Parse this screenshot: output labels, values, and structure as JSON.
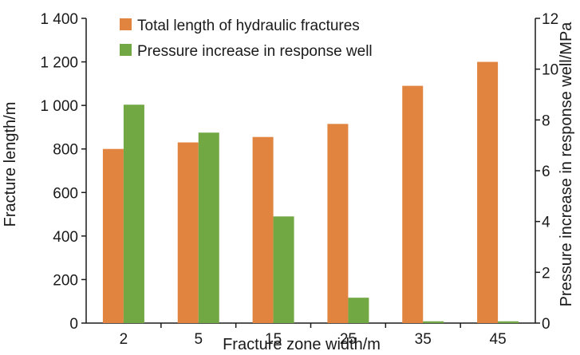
{
  "chart_data": {
    "type": "bar",
    "categories": [
      "2",
      "5",
      "15",
      "25",
      "35",
      "45"
    ],
    "xlabel": "Fracture zone width/m",
    "ylabel": "Fracture length/m",
    "y2label": "Pressure increase in response well/MPa",
    "ylim": [
      0,
      1400
    ],
    "y2lim": [
      0,
      12
    ],
    "yticks": [
      "0",
      "200",
      "400",
      "600",
      "800",
      "1 000",
      "1 200",
      "1 400"
    ],
    "y2ticks": [
      "0",
      "2",
      "4",
      "6",
      "8",
      "10",
      "12"
    ],
    "grid": false,
    "legend_position": "top-center",
    "series": [
      {
        "name": "Total length of hydraulic fractures",
        "axis": "left",
        "color": "#e0843f",
        "values": [
          800,
          830,
          855,
          915,
          1090,
          1200
        ]
      },
      {
        "name": "Pressure increase in response well",
        "axis": "right",
        "color": "#72a844",
        "values": [
          8.6,
          7.5,
          4.2,
          1.0,
          0.07,
          0.07
        ]
      }
    ]
  }
}
